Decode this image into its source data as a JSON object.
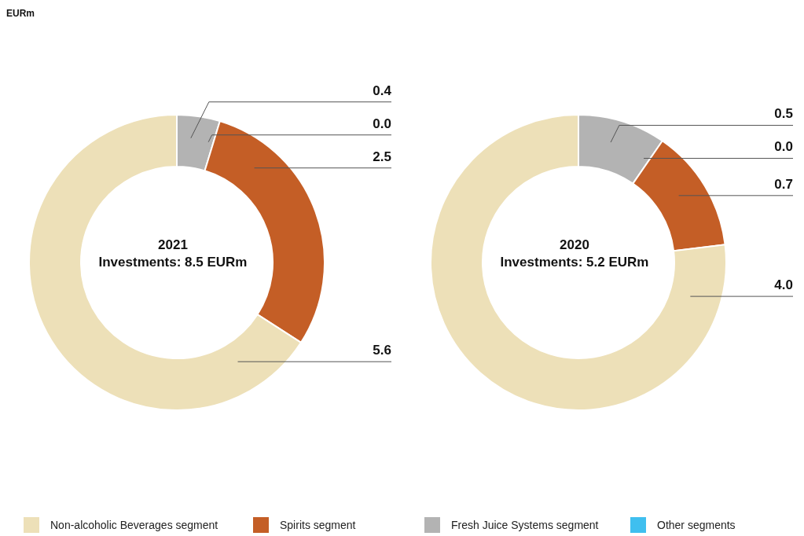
{
  "chart_data": [
    {
      "type": "donut",
      "title": "2021",
      "subtitle": "Investments: 8.5 EURm",
      "annotations": [
        "EURm"
      ],
      "categories": [
        "Fresh Juice Systems segment",
        "Other segments",
        "Spirits segment",
        "Non-alcoholic Beverages segment"
      ],
      "values": [
        0.4,
        0.0,
        2.5,
        5.6
      ],
      "value_labels": [
        "0.4",
        "0.0",
        "2.5",
        "5.6"
      ],
      "colors": [
        "#b3b3b3",
        "#3fbfef",
        "#c45e26",
        "#ede0b8"
      ],
      "legend": "bottom"
    },
    {
      "type": "donut",
      "title": "2020",
      "subtitle": "Investments: 5.2 EURm",
      "values": [
        0.5,
        0.0,
        0.7,
        4.0
      ],
      "value_labels": [
        "0.5",
        "0.0",
        "0.7",
        "4.0"
      ],
      "colors": [
        "#b3b3b3",
        "#3fbfef",
        "#c45e26",
        "#ede0b8"
      ]
    }
  ]
}
